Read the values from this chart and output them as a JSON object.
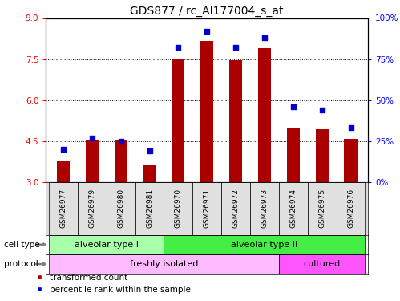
{
  "title": "GDS877 / rc_AI177004_s_at",
  "samples": [
    "GSM26977",
    "GSM26979",
    "GSM26980",
    "GSM26981",
    "GSM26970",
    "GSM26971",
    "GSM26972",
    "GSM26973",
    "GSM26974",
    "GSM26975",
    "GSM26976"
  ],
  "transformed_count": [
    3.75,
    4.55,
    4.52,
    3.65,
    7.48,
    8.15,
    7.47,
    7.9,
    5.0,
    4.93,
    4.57
  ],
  "percentile_rank": [
    20,
    27,
    25,
    19,
    82,
    92,
    82,
    88,
    46,
    44,
    33
  ],
  "bar_color": "#aa0000",
  "dot_color": "#0000cc",
  "ylim_left": [
    3,
    9
  ],
  "ylim_right": [
    0,
    100
  ],
  "yticks_left": [
    3,
    4.5,
    6,
    7.5,
    9
  ],
  "yticks_right": [
    0,
    25,
    50,
    75,
    100
  ],
  "ytick_labels_right": [
    "0%",
    "25%",
    "50%",
    "75%",
    "100%"
  ],
  "cell_type_groups": [
    {
      "label": "alveolar type I",
      "start": 0,
      "end": 3,
      "color": "#aaffaa"
    },
    {
      "label": "alveolar type II",
      "start": 4,
      "end": 10,
      "color": "#44ee44"
    }
  ],
  "protocol_groups": [
    {
      "label": "freshly isolated",
      "start": 0,
      "end": 7,
      "color": "#ffbbff"
    },
    {
      "label": "cultured",
      "start": 8,
      "end": 10,
      "color": "#ff55ff"
    }
  ],
  "cell_type_label": "cell type",
  "protocol_label": "protocol",
  "legend_red_label": "transformed count",
  "legend_blue_label": "percentile rank within the sample",
  "title_fontsize": 10,
  "tick_fontsize": 7.5,
  "sample_label_fontsize": 6.5,
  "annotation_fontsize": 8
}
